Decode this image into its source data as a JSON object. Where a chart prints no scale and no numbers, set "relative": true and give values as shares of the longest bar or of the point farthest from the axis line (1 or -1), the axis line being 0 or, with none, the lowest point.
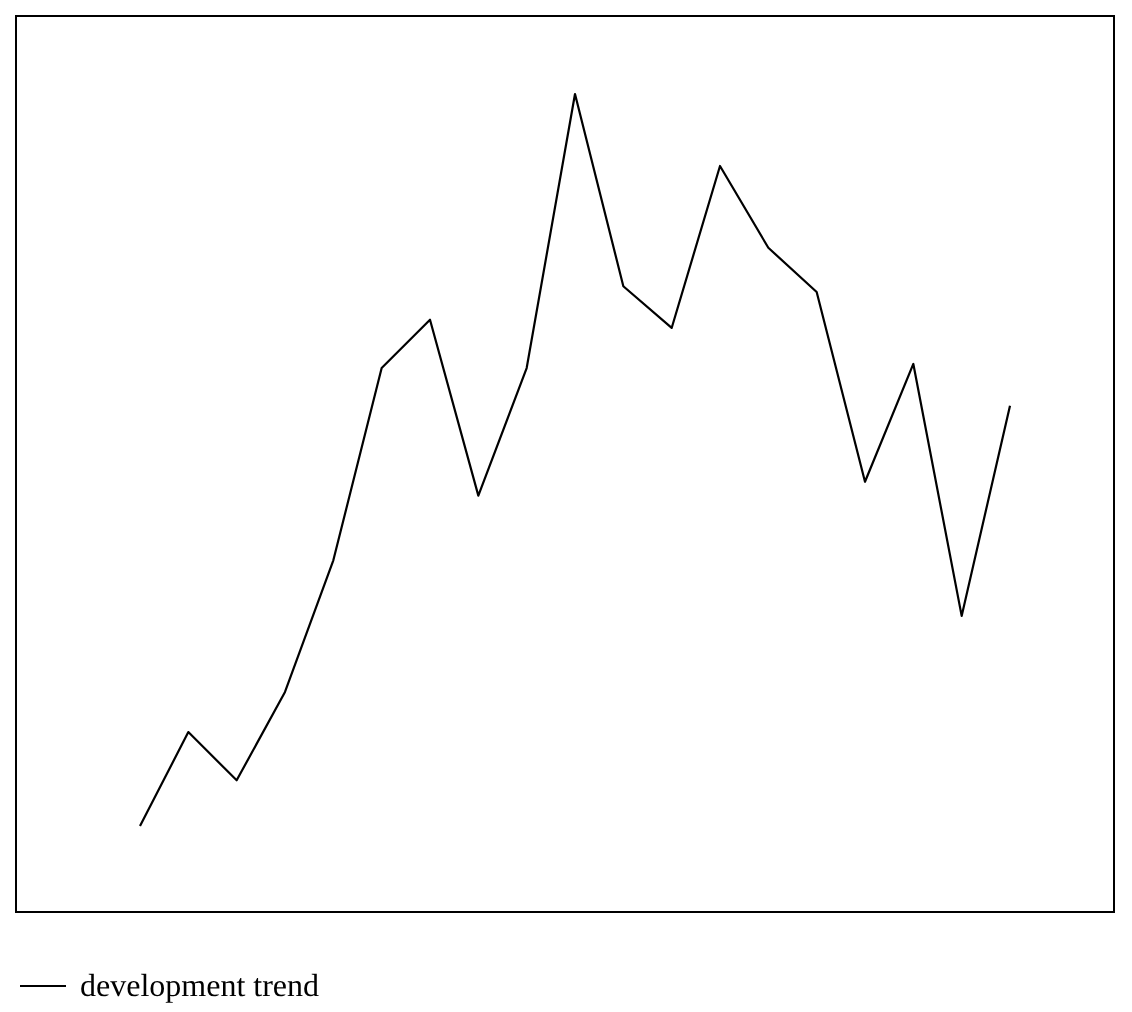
{
  "chart_data": {
    "type": "line",
    "relative": true,
    "legend": "bottom",
    "categories": [
      null,
      null,
      null,
      null,
      null,
      null,
      null,
      null,
      null,
      null,
      null,
      null,
      null,
      null,
      null,
      null,
      null,
      null,
      null
    ],
    "series": [
      {
        "name": "development trend",
        "color": "#000000",
        "values": [
          0.105,
          0.22,
          0.161,
          0.269,
          0.43,
          0.665,
          0.724,
          0.509,
          0.665,
          1,
          0.765,
          0.714,
          0.912,
          0.812,
          0.758,
          0.526,
          0.67,
          0.362,
          0.619
        ]
      }
    ]
  }
}
